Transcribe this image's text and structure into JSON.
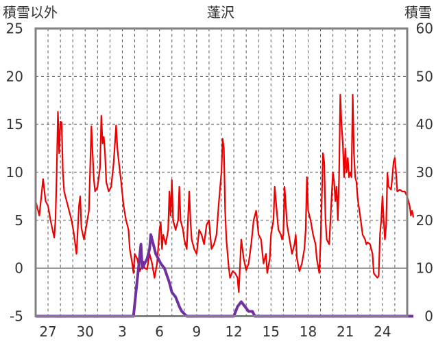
{
  "chart_data": {
    "type": "line",
    "title": "蓬沢",
    "ylabel_left": "積雪以外",
    "ylabel_right": "積雪",
    "y_left_range": [
      -5,
      25
    ],
    "y_left_ticks": [
      "25",
      "20",
      "15",
      "10",
      "5",
      "0",
      "-5"
    ],
    "y_right_range": [
      0,
      60
    ],
    "y_right_ticks": [
      "60",
      "50",
      "40",
      "30",
      "20",
      "10",
      "0"
    ],
    "x_range_days": [
      0,
      30
    ],
    "x_tick_labels": [
      "27",
      "30",
      "3",
      "6",
      "9",
      "12",
      "15",
      "18",
      "21",
      "24"
    ],
    "grid": "vertical dashed daily lines, horizontal dashed every 5 units",
    "colors": {
      "series_left": "#ee0000",
      "series_right": "#7030a0",
      "frame": "#808080",
      "zero_line": "#808080"
    },
    "series": [
      {
        "axis": "left",
        "color": "#ee0000",
        "values": [
          [
            0.0,
            7
          ],
          [
            0.3,
            5.5
          ],
          [
            0.5,
            8
          ],
          [
            0.6,
            9.3
          ],
          [
            0.8,
            7
          ],
          [
            1.0,
            6.5
          ],
          [
            1.2,
            5
          ],
          [
            1.4,
            3.8
          ],
          [
            1.5,
            3.2
          ],
          [
            1.6,
            5
          ],
          [
            1.7,
            10
          ],
          [
            1.8,
            16.3
          ],
          [
            1.9,
            12
          ],
          [
            2.0,
            15.3
          ],
          [
            2.1,
            15.2
          ],
          [
            2.2,
            10
          ],
          [
            2.3,
            8
          ],
          [
            2.5,
            7
          ],
          [
            2.7,
            6
          ],
          [
            2.9,
            5
          ],
          [
            3.1,
            3.5
          ],
          [
            3.3,
            1.5
          ],
          [
            3.5,
            6.5
          ],
          [
            3.6,
            7.5
          ],
          [
            3.7,
            4.2
          ],
          [
            3.9,
            3
          ],
          [
            4.1,
            4.5
          ],
          [
            4.3,
            6
          ],
          [
            4.5,
            14.8
          ],
          [
            4.6,
            12
          ],
          [
            4.7,
            9.3
          ],
          [
            4.8,
            8
          ],
          [
            5.0,
            8.5
          ],
          [
            5.2,
            10.5
          ],
          [
            5.3,
            15.9
          ],
          [
            5.4,
            13
          ],
          [
            5.5,
            13.7
          ],
          [
            5.6,
            12
          ],
          [
            5.7,
            9
          ],
          [
            5.9,
            8
          ],
          [
            6.1,
            8.5
          ],
          [
            6.3,
            11
          ],
          [
            6.5,
            14.9
          ],
          [
            6.6,
            12.5
          ],
          [
            6.7,
            11.3
          ],
          [
            6.9,
            9
          ],
          [
            7.1,
            6.5
          ],
          [
            7.3,
            5
          ],
          [
            7.5,
            4
          ],
          [
            7.6,
            2
          ],
          [
            7.8,
            0.5
          ],
          [
            7.9,
            -0.5
          ],
          [
            8.0,
            1.5
          ],
          [
            8.2,
            1
          ],
          [
            8.4,
            -0.3
          ],
          [
            8.6,
            0.3
          ],
          [
            8.7,
            0.7
          ],
          [
            8.8,
            0
          ],
          [
            9.0,
            -0.1
          ],
          [
            9.2,
            1.5
          ],
          [
            9.4,
            0.5
          ],
          [
            9.6,
            -1
          ],
          [
            9.8,
            0.5
          ],
          [
            10.0,
            4
          ],
          [
            10.1,
            4.8
          ],
          [
            10.2,
            2
          ],
          [
            10.3,
            3.5
          ],
          [
            10.5,
            2.5
          ],
          [
            10.7,
            4
          ],
          [
            10.8,
            8
          ],
          [
            10.9,
            5.5
          ],
          [
            11.0,
            9.2
          ],
          [
            11.1,
            5
          ],
          [
            11.3,
            4
          ],
          [
            11.5,
            5
          ],
          [
            11.6,
            8.5
          ],
          [
            11.7,
            5
          ],
          [
            11.9,
            4
          ],
          [
            12.0,
            3
          ],
          [
            12.2,
            2
          ],
          [
            12.4,
            8
          ],
          [
            12.5,
            5
          ],
          [
            12.6,
            3
          ],
          [
            12.8,
            2
          ],
          [
            13.0,
            1.5
          ],
          [
            13.2,
            4
          ],
          [
            13.4,
            3.5
          ],
          [
            13.6,
            2.5
          ],
          [
            13.8,
            4.5
          ],
          [
            14.0,
            5
          ],
          [
            14.2,
            2
          ],
          [
            14.4,
            2.5
          ],
          [
            14.6,
            3.5
          ],
          [
            14.8,
            7
          ],
          [
            15.0,
            10
          ],
          [
            15.1,
            13.5
          ],
          [
            15.2,
            12.5
          ],
          [
            15.3,
            6
          ],
          [
            15.4,
            3
          ],
          [
            15.5,
            1.5
          ],
          [
            15.6,
            0
          ],
          [
            15.7,
            -1
          ],
          [
            15.9,
            -0.3
          ],
          [
            16.1,
            -0.5
          ],
          [
            16.3,
            -1
          ],
          [
            16.4,
            -2.5
          ],
          [
            16.6,
            3
          ],
          [
            16.8,
            1
          ],
          [
            17.0,
            -0.2
          ],
          [
            17.2,
            0.5
          ],
          [
            17.4,
            2.5
          ],
          [
            17.6,
            5
          ],
          [
            17.8,
            6
          ],
          [
            18.0,
            3.5
          ],
          [
            18.2,
            3
          ],
          [
            18.4,
            0.5
          ],
          [
            18.6,
            1.5
          ],
          [
            18.7,
            -0.5
          ],
          [
            18.9,
            1
          ],
          [
            19.0,
            3.5
          ],
          [
            19.2,
            5
          ],
          [
            19.3,
            8.5
          ],
          [
            19.4,
            7
          ],
          [
            19.6,
            4
          ],
          [
            19.8,
            3.5
          ],
          [
            19.9,
            3
          ],
          [
            20.0,
            3.5
          ],
          [
            20.1,
            8.5
          ],
          [
            20.3,
            4.5
          ],
          [
            20.5,
            3
          ],
          [
            20.7,
            1.5
          ],
          [
            20.9,
            2.5
          ],
          [
            21.0,
            3.5
          ],
          [
            21.1,
            1
          ],
          [
            21.3,
            -0.3
          ],
          [
            21.5,
            0.5
          ],
          [
            21.7,
            2
          ],
          [
            21.8,
            4
          ],
          [
            21.9,
            9.5
          ],
          [
            22.0,
            6
          ],
          [
            22.2,
            5
          ],
          [
            22.4,
            3.5
          ],
          [
            22.6,
            2.5
          ],
          [
            22.7,
            1
          ],
          [
            22.9,
            -0.5
          ],
          [
            23.0,
            2.5
          ],
          [
            23.1,
            7
          ],
          [
            23.2,
            12
          ],
          [
            23.3,
            11
          ],
          [
            23.4,
            5
          ],
          [
            23.5,
            3
          ],
          [
            23.7,
            2.5
          ],
          [
            23.8,
            5
          ],
          [
            24.0,
            10
          ],
          [
            24.1,
            9
          ],
          [
            24.2,
            7
          ],
          [
            24.3,
            8.5
          ],
          [
            24.4,
            5
          ],
          [
            24.5,
            9.5
          ],
          [
            24.6,
            18.1
          ],
          [
            24.7,
            15
          ],
          [
            24.8,
            13
          ],
          [
            24.9,
            9.5
          ],
          [
            25.0,
            12.5
          ],
          [
            25.1,
            10
          ],
          [
            25.2,
            11.5
          ],
          [
            25.3,
            9.5
          ],
          [
            25.4,
            10
          ],
          [
            25.5,
            9.5
          ],
          [
            25.6,
            18.1
          ],
          [
            25.7,
            12
          ],
          [
            25.8,
            9.5
          ],
          [
            25.9,
            9
          ],
          [
            26.0,
            7.3
          ],
          [
            26.2,
            5.5
          ],
          [
            26.4,
            3.5
          ],
          [
            26.6,
            3
          ],
          [
            26.7,
            2.5
          ],
          [
            26.8,
            2.7
          ],
          [
            27.0,
            2.5
          ],
          [
            27.2,
            1.5
          ],
          [
            27.3,
            -0.5
          ],
          [
            27.4,
            -0.7
          ],
          [
            27.6,
            -1
          ],
          [
            27.7,
            -0.8
          ],
          [
            27.8,
            3.5
          ],
          [
            27.9,
            5
          ],
          [
            28.0,
            7.5
          ],
          [
            28.1,
            5
          ],
          [
            28.2,
            3
          ],
          [
            28.3,
            4.5
          ],
          [
            28.4,
            9.9
          ],
          [
            28.5,
            8.5
          ],
          [
            28.7,
            8.2
          ],
          [
            28.8,
            9.5
          ],
          [
            28.9,
            11.1
          ],
          [
            29.0,
            11.5
          ],
          [
            29.1,
            10
          ],
          [
            29.2,
            8
          ],
          [
            29.4,
            8.2
          ],
          [
            29.6,
            8
          ],
          [
            29.8,
            8
          ],
          [
            30.0,
            7.5
          ],
          [
            30.2,
            6.5
          ],
          [
            30.3,
            5.5
          ],
          [
            30.4,
            6
          ],
          [
            30.5,
            5.3
          ]
        ]
      },
      {
        "axis": "right",
        "color": "#7030a0",
        "values": [
          [
            0.0,
            0
          ],
          [
            7.9,
            0
          ],
          [
            8.1,
            5
          ],
          [
            8.3,
            10
          ],
          [
            8.5,
            15
          ],
          [
            8.6,
            10
          ],
          [
            8.8,
            11
          ],
          [
            9.0,
            12
          ],
          [
            9.2,
            14
          ],
          [
            9.3,
            17
          ],
          [
            9.5,
            15
          ],
          [
            9.7,
            13
          ],
          [
            9.9,
            12
          ],
          [
            10.1,
            11
          ],
          [
            10.4,
            10
          ],
          [
            10.8,
            7
          ],
          [
            11.0,
            5
          ],
          [
            11.3,
            4
          ],
          [
            11.6,
            2
          ],
          [
            11.8,
            1
          ],
          [
            12.2,
            0
          ],
          [
            16.0,
            0
          ],
          [
            16.3,
            2
          ],
          [
            16.6,
            3
          ],
          [
            16.9,
            2
          ],
          [
            17.2,
            1
          ],
          [
            17.5,
            1
          ],
          [
            17.7,
            0
          ],
          [
            30.5,
            0
          ]
        ]
      }
    ]
  }
}
